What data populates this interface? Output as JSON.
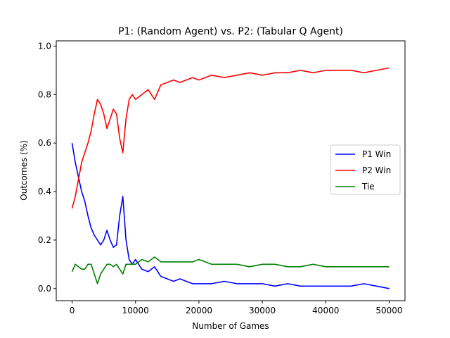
{
  "chart_data": {
    "type": "line",
    "title": "P1: (Random Agent) vs. P2: (Tabular Q Agent)",
    "xlabel": "Number of Games",
    "ylabel": "Outcomes (%)",
    "xlim": [
      -2500,
      52500
    ],
    "ylim": [
      -0.05,
      1.0216
    ],
    "xticks": [
      0,
      10000,
      20000,
      30000,
      40000,
      50000
    ],
    "xtick_labels": [
      "0",
      "10000",
      "20000",
      "30000",
      "40000",
      "50000"
    ],
    "yticks": [
      0.0,
      0.2,
      0.4,
      0.6,
      0.8,
      1.0
    ],
    "ytick_labels": [
      "0.0",
      "0.2",
      "0.4",
      "0.6",
      "0.8",
      "1.0"
    ],
    "grid": false,
    "legend_position": "center-right",
    "x": [
      0,
      500,
      1000,
      1500,
      2000,
      2500,
      3000,
      3500,
      4000,
      4500,
      5000,
      5500,
      6000,
      6500,
      7000,
      7500,
      8000,
      8500,
      9000,
      9500,
      10000,
      11000,
      12000,
      13000,
      14000,
      15000,
      16000,
      17000,
      18000,
      19000,
      20000,
      22000,
      24000,
      26000,
      28000,
      30000,
      32000,
      34000,
      36000,
      38000,
      40000,
      42000,
      44000,
      46000,
      48000,
      50000
    ],
    "series": [
      {
        "name": "P1 Win",
        "color": "#0000ff",
        "values": [
          0.6,
          0.52,
          0.46,
          0.4,
          0.36,
          0.3,
          0.25,
          0.22,
          0.2,
          0.18,
          0.2,
          0.24,
          0.2,
          0.17,
          0.18,
          0.3,
          0.38,
          0.2,
          0.12,
          0.1,
          0.12,
          0.08,
          0.07,
          0.09,
          0.05,
          0.04,
          0.03,
          0.04,
          0.03,
          0.02,
          0.02,
          0.02,
          0.03,
          0.02,
          0.02,
          0.02,
          0.01,
          0.02,
          0.01,
          0.01,
          0.01,
          0.01,
          0.01,
          0.02,
          0.01,
          0.0
        ]
      },
      {
        "name": "P2 Win",
        "color": "#ff0000",
        "values": [
          0.33,
          0.38,
          0.45,
          0.52,
          0.56,
          0.6,
          0.65,
          0.72,
          0.78,
          0.76,
          0.72,
          0.66,
          0.7,
          0.74,
          0.72,
          0.62,
          0.56,
          0.7,
          0.78,
          0.8,
          0.78,
          0.8,
          0.82,
          0.78,
          0.84,
          0.85,
          0.86,
          0.85,
          0.86,
          0.87,
          0.86,
          0.88,
          0.87,
          0.88,
          0.89,
          0.88,
          0.89,
          0.89,
          0.9,
          0.89,
          0.9,
          0.9,
          0.9,
          0.89,
          0.9,
          0.91
        ]
      },
      {
        "name": "Tie",
        "color": "#008000",
        "values": [
          0.07,
          0.1,
          0.09,
          0.08,
          0.08,
          0.1,
          0.1,
          0.06,
          0.02,
          0.06,
          0.08,
          0.1,
          0.1,
          0.09,
          0.1,
          0.08,
          0.06,
          0.1,
          0.1,
          0.1,
          0.1,
          0.12,
          0.11,
          0.13,
          0.11,
          0.11,
          0.11,
          0.11,
          0.11,
          0.11,
          0.12,
          0.1,
          0.1,
          0.1,
          0.09,
          0.1,
          0.1,
          0.09,
          0.09,
          0.1,
          0.09,
          0.09,
          0.09,
          0.09,
          0.09,
          0.09
        ]
      }
    ]
  }
}
